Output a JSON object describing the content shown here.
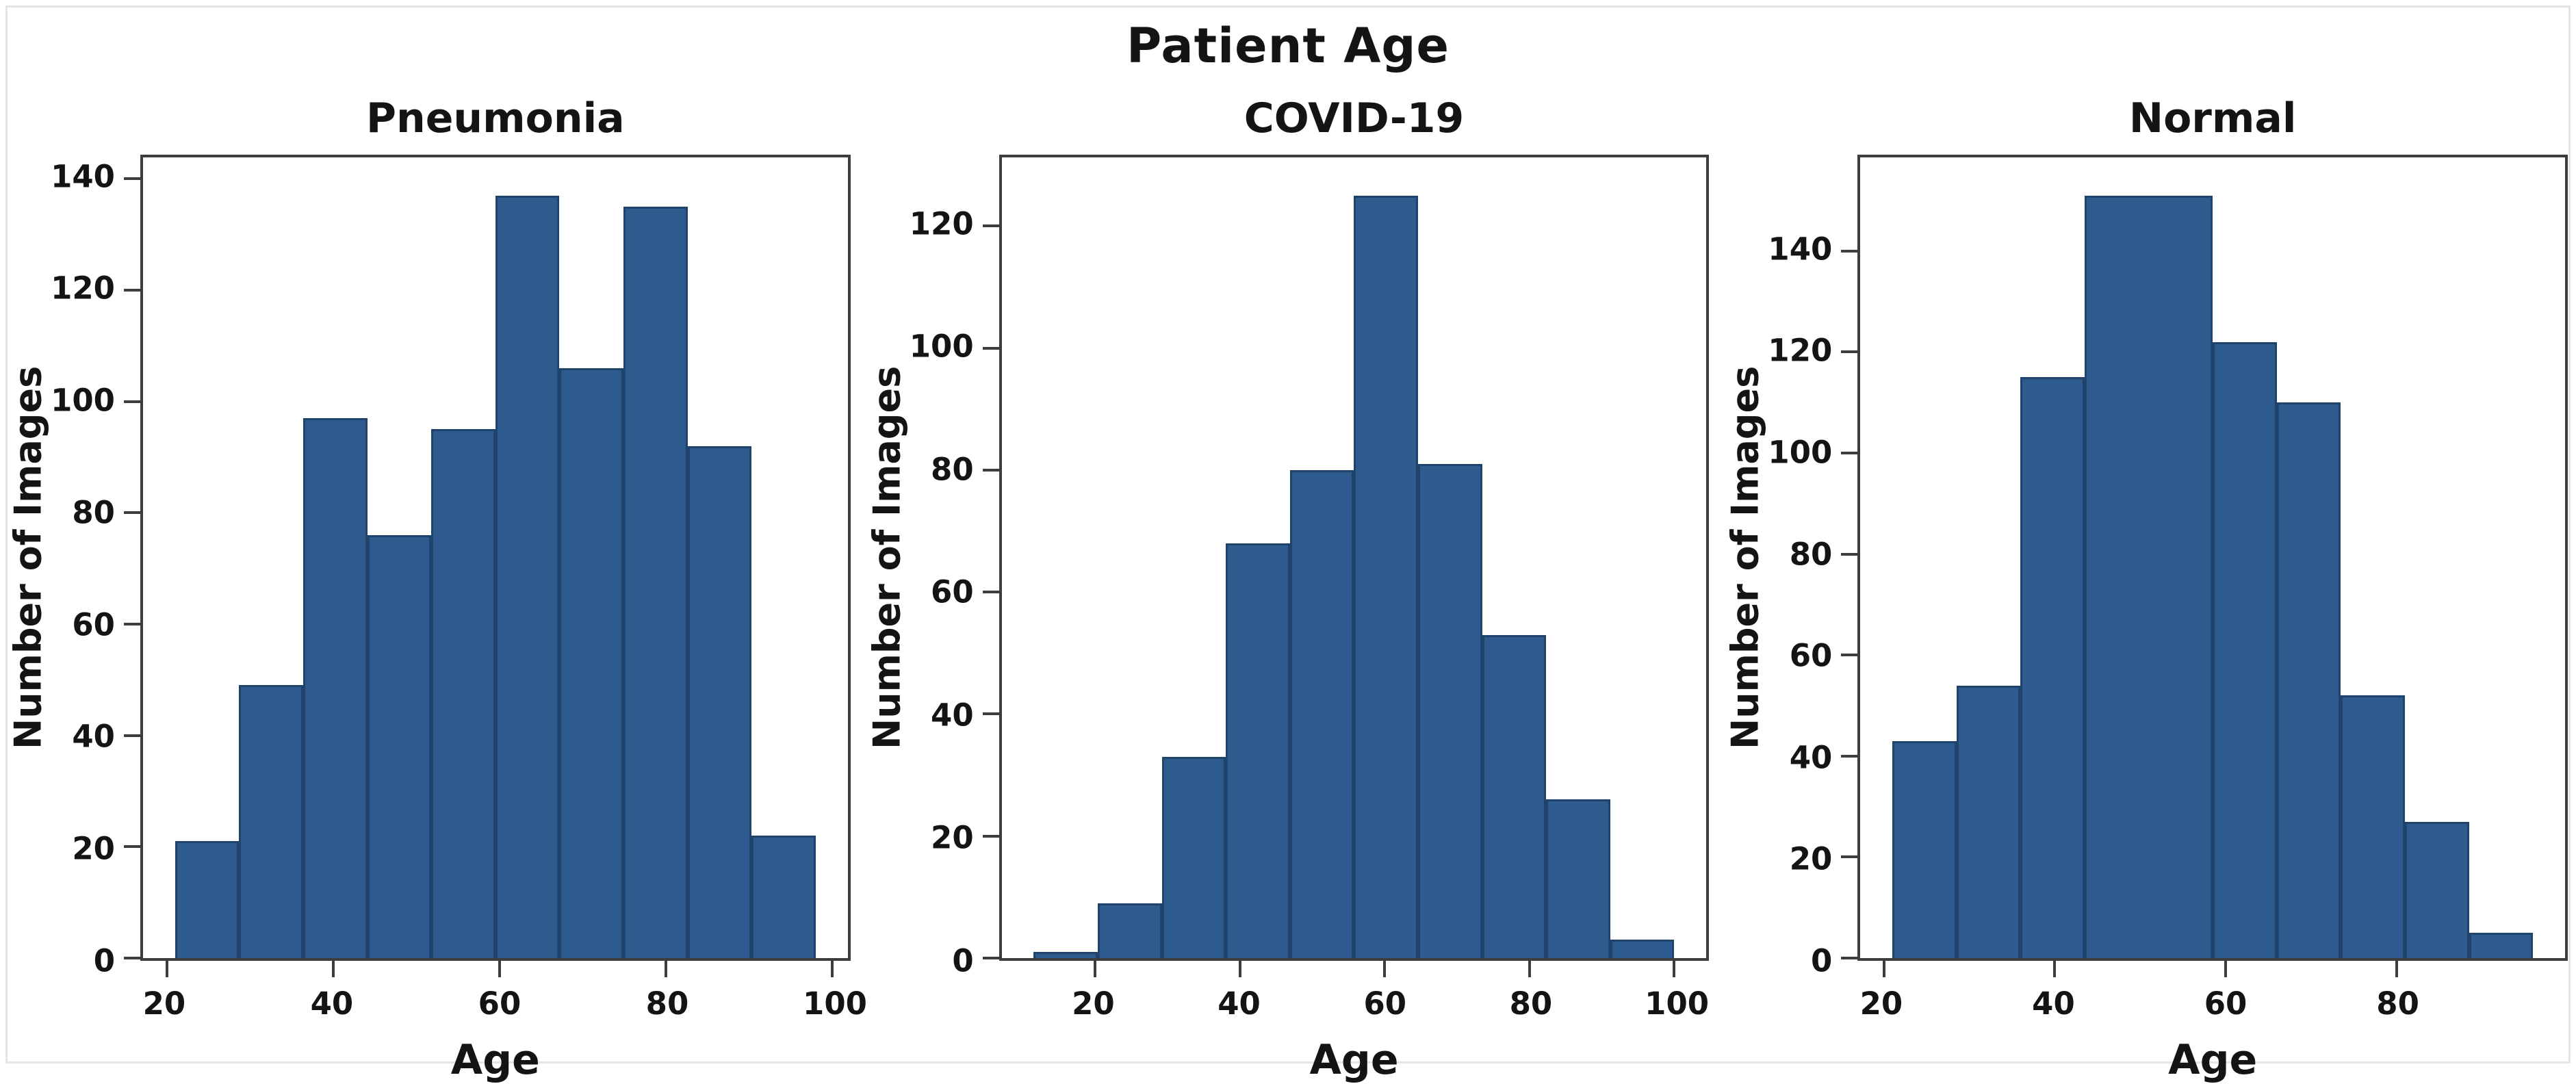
{
  "figure": {
    "suptitle": "Patient Age",
    "background": "#ffffff",
    "bar_fill": "#2e5b8d",
    "bar_edge": "#1f436a",
    "spine_color": "#3d3d3d",
    "text_color": "#141414"
  },
  "chart_data": [
    {
      "type": "bar",
      "subtype": "histogram",
      "title": "Pneumonia",
      "xlabel": "Age",
      "ylabel": "Number of Images",
      "bin_edges": [
        21,
        28.7,
        36.4,
        44.1,
        51.8,
        59.5,
        67.2,
        74.9,
        82.6,
        90.3,
        98
      ],
      "counts": [
        21,
        49,
        97,
        76,
        95,
        137,
        106,
        135,
        92,
        22
      ],
      "xlim": [
        17.15,
        101.85
      ],
      "ylim": [
        0,
        143.85
      ],
      "xticks": [
        20,
        40,
        60,
        80,
        100
      ],
      "yticks": [
        0,
        20,
        40,
        60,
        80,
        100,
        120,
        140
      ],
      "grid": false
    },
    {
      "type": "bar",
      "subtype": "histogram",
      "title": "COVID-19",
      "xlabel": "Age",
      "ylabel": "Number of Images",
      "bin_edges": [
        11.5,
        20.35,
        29.2,
        38.05,
        46.9,
        55.75,
        64.6,
        73.45,
        82.3,
        91.15,
        100
      ],
      "counts": [
        1,
        9,
        33,
        68,
        80,
        125,
        81,
        53,
        26,
        3
      ],
      "xlim": [
        7.08,
        104.43
      ],
      "ylim": [
        0,
        131.25
      ],
      "xticks": [
        20,
        40,
        60,
        80,
        100
      ],
      "yticks": [
        0,
        20,
        40,
        60,
        80,
        100,
        120
      ],
      "grid": false
    },
    {
      "type": "bar",
      "subtype": "histogram",
      "title": "Normal",
      "xlabel": "Age",
      "ylabel": "Number of Images",
      "bin_edges": [
        21,
        28.5,
        36,
        43.5,
        51,
        58.5,
        66,
        73.5,
        81,
        88.5,
        96
      ],
      "counts": [
        43,
        54,
        115,
        151,
        151,
        122,
        110,
        52,
        27,
        5
      ],
      "xlim": [
        17.25,
        99.75
      ],
      "ylim": [
        0,
        158.55
      ],
      "xticks": [
        20,
        40,
        60,
        80
      ],
      "yticks": [
        0,
        20,
        40,
        60,
        80,
        100,
        120,
        140
      ],
      "grid": false
    }
  ]
}
